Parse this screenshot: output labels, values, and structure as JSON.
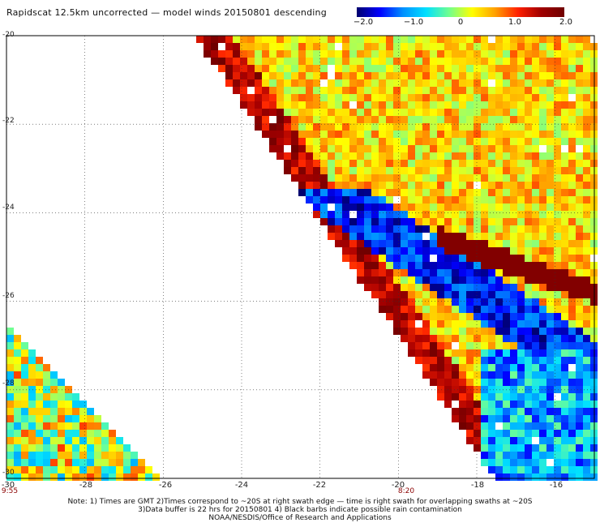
{
  "title": "Rapidscat 12.5km uncorrected — model winds 20150801 descending",
  "colorbar": {
    "ticks": [
      "−2.0",
      "−1.0",
      "0",
      "1.0",
      "2.0"
    ],
    "tick_values": [
      -2.0,
      -1.0,
      0,
      1.0,
      2.0
    ],
    "min": -2.0,
    "max": 2.0,
    "colors": [
      "#00006e",
      "#0000ff",
      "#0090ff",
      "#00e0ff",
      "#70ff90",
      "#ffff00",
      "#ffa000",
      "#ff2000",
      "#a00000",
      "#700000"
    ]
  },
  "axes": {
    "lat_labels": [
      "-20",
      "-22",
      "-24",
      "-26",
      "-28",
      "-30"
    ],
    "lat_values": [
      -20,
      -22,
      -24,
      -26,
      -28,
      -30
    ],
    "lon_labels": [
      "-30",
      "-28",
      "-26",
      "-24",
      "-22",
      "-20",
      "-18",
      "-16"
    ],
    "lon_values": [
      -30,
      -28,
      -26,
      -24,
      -22,
      -20,
      -18,
      -16
    ],
    "lat_range": [
      -30,
      -20
    ],
    "lon_range": [
      -30,
      -15
    ],
    "grid": "dotted"
  },
  "times": [
    {
      "label": "9:55",
      "lon": -30
    },
    {
      "label": "8:20",
      "lon": -20
    }
  ],
  "notes": [
    "Note: 1) Times are GMT 2)Times correspond to ~20S at right swath edge — time is right swath for overlapping swaths at ~20S",
    "3)Data buffer is 22 hrs for 20150801 4) Black barbs indicate possible rain contamination",
    "NOAA/NESDIS/Office of Research and Applications"
  ]
}
